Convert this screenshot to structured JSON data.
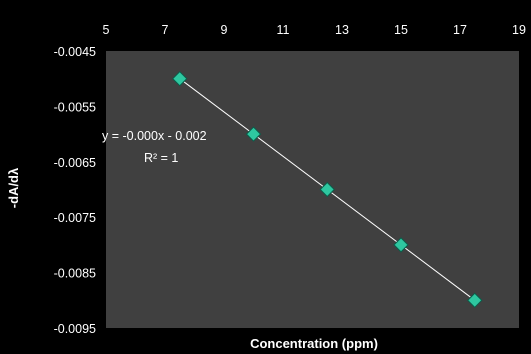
{
  "chart_data": {
    "type": "scatter",
    "title": "",
    "xlabel": "Concentration (ppm)",
    "ylabel": "-dA/dλ",
    "xlim": [
      5,
      19
    ],
    "ylim": [
      -0.0095,
      -0.0045
    ],
    "x_ticks": [
      "5",
      "7",
      "9",
      "11",
      "13",
      "15",
      "17",
      "19"
    ],
    "y_ticks": [
      "-0.0045",
      "-0.0055",
      "-0.0065",
      "-0.0075",
      "-0.0085",
      "-0.0095"
    ],
    "x_axis_position": "top",
    "grid": false,
    "background_color": "#000000",
    "plot_area_color": "#404040",
    "marker_color": "#2ec7a0",
    "marker_shape": "diamond",
    "trendline": {
      "type": "linear",
      "color": "#ffffff",
      "equation": "y = -0.000x - 0.002",
      "r_squared": "R² = 1"
    },
    "series": [
      {
        "x": [
          7.5,
          10,
          12.5,
          15,
          17.5
        ],
        "y": [
          -0.005,
          -0.006,
          -0.007,
          -0.008,
          -0.009
        ]
      }
    ]
  }
}
